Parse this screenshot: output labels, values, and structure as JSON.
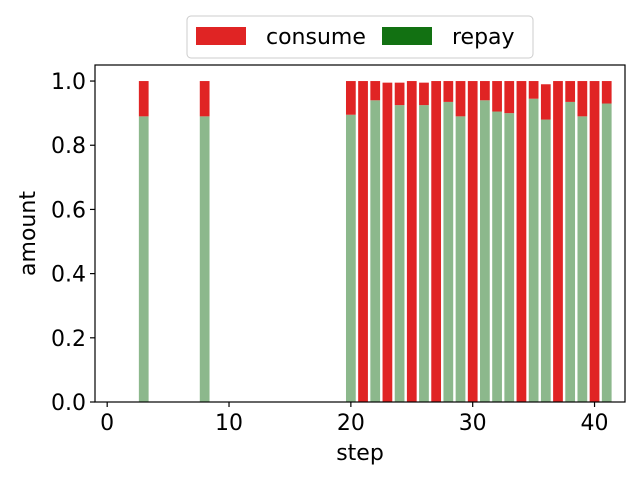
{
  "chart_data": {
    "type": "bar",
    "stacked": true,
    "xlabel": "step",
    "ylabel": "amount",
    "xlim": [
      -1,
      42.5
    ],
    "ylim": [
      0,
      1.05
    ],
    "xticks": [
      0,
      10,
      20,
      30,
      40
    ],
    "yticks": [
      0.0,
      0.2,
      0.4,
      0.6,
      0.8,
      1.0
    ],
    "xtick_labels": [
      "0",
      "10",
      "20",
      "30",
      "40"
    ],
    "ytick_labels": [
      "0.0",
      "0.2",
      "0.4",
      "0.6",
      "0.8",
      "1.0"
    ],
    "grid": false,
    "legend_position": "top-center",
    "x": [
      3,
      8,
      20,
      21,
      22,
      23,
      24,
      25,
      26,
      27,
      28,
      29,
      30,
      31,
      32,
      33,
      34,
      35,
      36,
      37,
      38,
      39,
      40,
      41
    ],
    "series": [
      {
        "name": "repay",
        "color": "#8cb88c",
        "legend_color": "#127112",
        "values": [
          0.89,
          0.89,
          0.895,
          0.0,
          0.94,
          0.0,
          0.925,
          0.0,
          0.925,
          0.0,
          0.935,
          0.89,
          0.0,
          0.94,
          0.905,
          0.9,
          0.0,
          0.945,
          0.88,
          0.0,
          0.935,
          0.89,
          0.0,
          0.93
        ]
      },
      {
        "name": "consume",
        "color": "#e02424",
        "legend_color": "#e02424",
        "values": [
          0.11,
          0.11,
          0.105,
          1.0,
          0.06,
          0.995,
          0.07,
          1.0,
          0.07,
          1.0,
          0.065,
          0.11,
          1.0,
          0.06,
          0.095,
          0.1,
          1.0,
          0.055,
          0.11,
          1.0,
          0.065,
          0.11,
          1.0,
          0.07
        ]
      }
    ]
  }
}
